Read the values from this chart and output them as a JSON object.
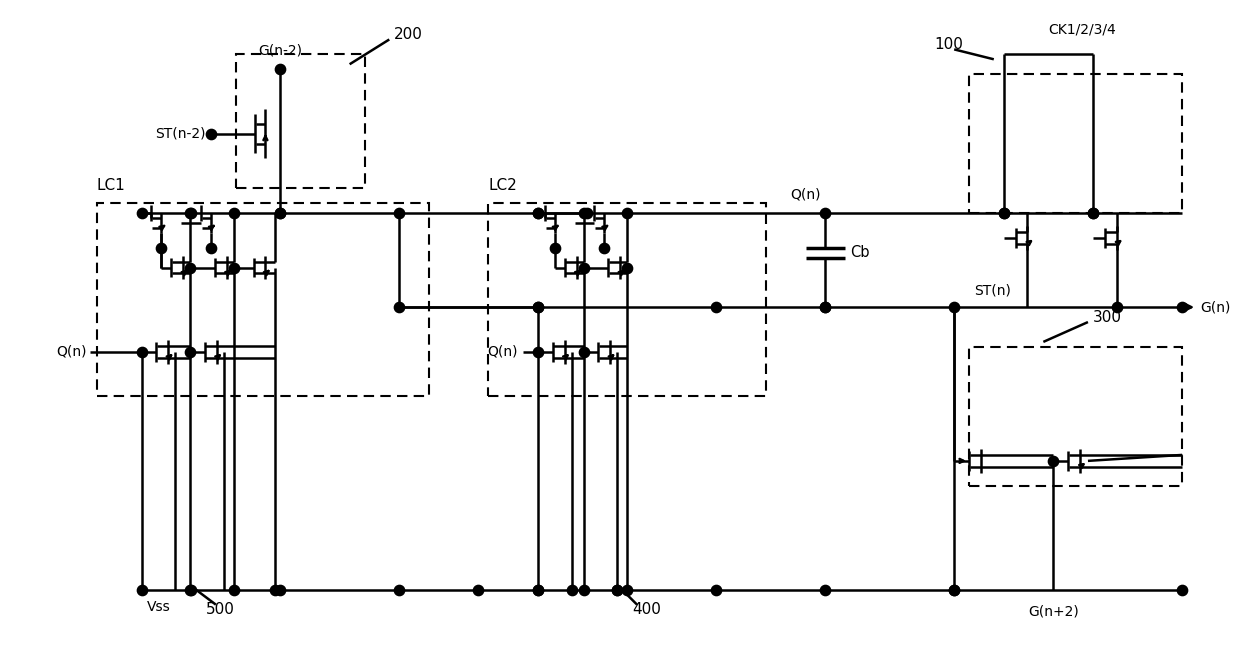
{
  "bg": "#ffffff",
  "lc": "#000000",
  "lw": 1.8,
  "lw_thin": 1.2,
  "ds": 55,
  "labels": {
    "G_n_minus_2": "G(n-2)",
    "ST_n_minus_2": "ST(n-2)",
    "LC1": "LC1",
    "LC2": "LC2",
    "Q_n_top": "Q(n)",
    "Q_n_left": "Q(n)",
    "Q_n_mid": "Q(n)",
    "Cb": "Cb",
    "ST_n": "ST(n)",
    "G_n": "G(n)",
    "G_n_plus_2": "G(n+2)",
    "Vss": "Vss",
    "n200": "200",
    "n100": "100",
    "n300": "300",
    "n400": "400",
    "n500": "500",
    "CK1234": "CK1/2/3/4"
  }
}
